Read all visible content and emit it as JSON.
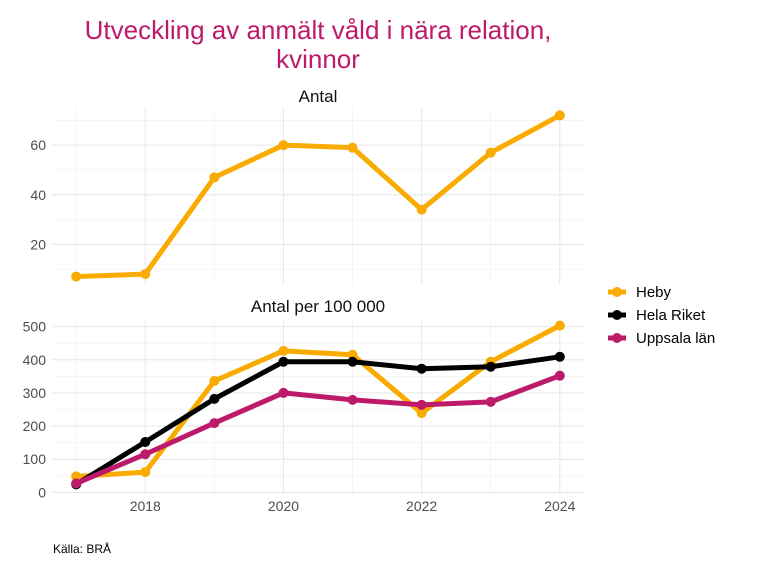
{
  "chart_data": [
    {
      "type": "line",
      "title": "Utveckling av anmält våld i nära relation, kvinnor",
      "panel_title": "Antal",
      "x": [
        2017,
        2018,
        2019,
        2020,
        2021,
        2022,
        2023,
        2024
      ],
      "x_ticks": [
        2018,
        2020,
        2022,
        2024
      ],
      "y_ticks": [
        20,
        40,
        60
      ],
      "ylim": [
        4,
        75
      ],
      "grid": true,
      "series": [
        {
          "name": "Heby",
          "color": "#f9ab00",
          "values": [
            7,
            8,
            47,
            60,
            59,
            34,
            57,
            72
          ]
        }
      ]
    },
    {
      "type": "line",
      "panel_title": "Antal per 100 000",
      "x": [
        2017,
        2018,
        2019,
        2020,
        2021,
        2022,
        2023,
        2024
      ],
      "x_ticks": [
        2018,
        2020,
        2022,
        2024
      ],
      "y_ticks": [
        0,
        100,
        200,
        300,
        400,
        500
      ],
      "ylim": [
        -5,
        520
      ],
      "grid": true,
      "series": [
        {
          "name": "Heby",
          "color": "#f9ab00",
          "values": [
            48,
            61,
            336,
            427,
            415,
            239,
            394,
            503
          ]
        },
        {
          "name": "Hela Riket",
          "color": "#000000",
          "values": [
            24,
            152,
            282,
            394,
            394,
            373,
            379,
            409
          ]
        },
        {
          "name": "Uppsala län",
          "color": "#bd1a6a",
          "values": [
            27,
            115,
            209,
            300,
            279,
            264,
            273,
            352
          ]
        }
      ]
    }
  ],
  "title_line1": "Utveckling av anmält våld i nära relation,",
  "title_line2": "kvinnor",
  "legend": [
    {
      "name": "Heby",
      "color": "#f9ab00"
    },
    {
      "name": "Hela Riket",
      "color": "#000000"
    },
    {
      "name": "Uppsala län",
      "color": "#bd1a6a"
    }
  ],
  "legend_position": "right",
  "caption": "Källa: BRÅ"
}
